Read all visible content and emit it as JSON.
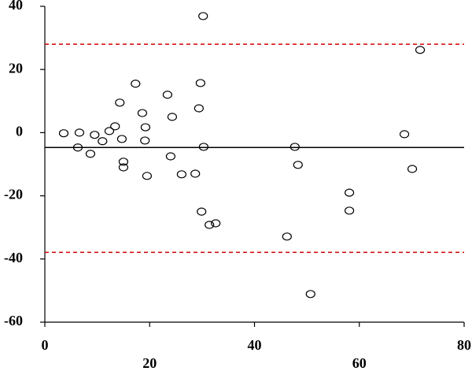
{
  "chart_data": {
    "type": "scatter",
    "x": [
      3.6,
      6.6,
      6.3,
      8.7,
      9.5,
      11,
      12.3,
      13.4,
      14.3,
      14.7,
      15,
      15,
      17.3,
      18.6,
      19.2,
      19.1,
      19.5,
      23.4,
      24.3,
      24,
      26.1,
      28.7,
      29.4,
      29.7,
      30.2,
      30.3,
      29.9,
      31.4,
      32.6,
      46.2,
      47.7,
      48.3,
      50.7,
      58.1,
      58.1,
      68.6,
      70.1,
      71.6
    ],
    "y": [
      -0.2,
      0,
      -4.7,
      -6.7,
      -0.7,
      -2.7,
      0.5,
      2,
      9.5,
      -2,
      -9.2,
      -11,
      15.5,
      6.2,
      1.7,
      -2.5,
      -13.7,
      12,
      5,
      -7.5,
      -13.2,
      -13,
      7.7,
      15.7,
      36.9,
      -4.5,
      -25,
      -29.2,
      -28.7,
      -32.9,
      -4.5,
      -10.2,
      -51.1,
      -19,
      -24.7,
      -0.5,
      -11.5,
      26.2
    ],
    "marker_color": "#000000",
    "hlines": [
      {
        "value": -4.7,
        "color": "#000000",
        "style": "solid"
      },
      {
        "value": 28.0,
        "color": "#d00000",
        "style": "dashed"
      },
      {
        "value": -37.9,
        "color": "#d00000",
        "style": "dashed"
      }
    ],
    "xlim": [
      0,
      80
    ],
    "xticks": [
      0,
      20,
      40,
      60,
      80
    ],
    "ylim": [
      -60,
      40
    ],
    "yticks": [
      -60,
      -40,
      -20,
      0,
      20,
      40
    ],
    "grid": false
  }
}
